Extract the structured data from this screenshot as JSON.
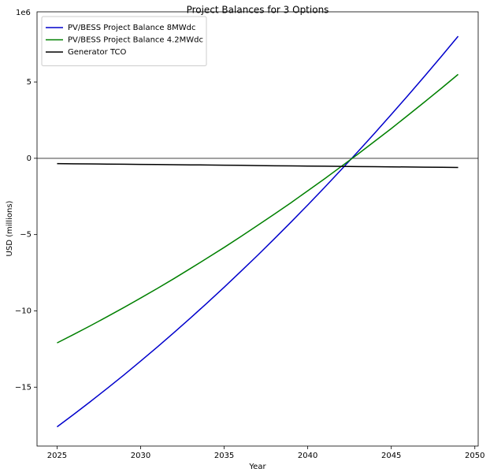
{
  "chart_data": {
    "type": "line",
    "title": "Project Balances for 3 Options",
    "x_label": "Year",
    "y_label": "USD (millions)",
    "y_offset_label": "1e6",
    "x": [
      2025,
      2026,
      2027,
      2028,
      2029,
      2030,
      2031,
      2032,
      2033,
      2034,
      2035,
      2036,
      2037,
      2038,
      2039,
      2040,
      2041,
      2042,
      2043,
      2044,
      2045,
      2046,
      2047,
      2048,
      2049
    ],
    "series": [
      {
        "name": "PV/BESS Project Balance 8MWdc",
        "color": "#0000cc",
        "values": [
          -17.6,
          -16.78,
          -15.94,
          -15.08,
          -14.2,
          -13.29,
          -12.37,
          -11.42,
          -10.45,
          -9.46,
          -8.45,
          -7.41,
          -6.36,
          -5.28,
          -4.18,
          -3.06,
          -1.92,
          -0.75,
          0.43,
          1.64,
          2.87,
          4.12,
          5.39,
          6.68,
          8.0
        ]
      },
      {
        "name": "PV/BESS Project Balance 4.2MWdc",
        "color": "#008000",
        "values": [
          -12.1,
          -11.54,
          -10.97,
          -10.38,
          -9.78,
          -9.16,
          -8.53,
          -7.88,
          -7.21,
          -6.53,
          -5.84,
          -5.13,
          -4.4,
          -3.66,
          -2.91,
          -2.13,
          -1.35,
          -0.54,
          0.27,
          1.11,
          1.95,
          2.82,
          3.7,
          4.59,
          5.5
        ]
      },
      {
        "name": "Generator TCO",
        "color": "#000000",
        "values": [
          -0.35,
          -0.36,
          -0.37,
          -0.38,
          -0.39,
          -0.4,
          -0.41,
          -0.42,
          -0.43,
          -0.44,
          -0.45,
          -0.46,
          -0.48,
          -0.49,
          -0.5,
          -0.51,
          -0.52,
          -0.53,
          -0.54,
          -0.55,
          -0.56,
          -0.57,
          -0.58,
          -0.59,
          -0.6
        ]
      }
    ],
    "xlim": [
      2023.8,
      2050.2
    ],
    "xticks": [
      2025,
      2030,
      2035,
      2040,
      2045,
      2050
    ],
    "ylim": [
      -18.86,
      9.6
    ],
    "yticks": [
      {
        "value": -15,
        "label": "−15"
      },
      {
        "value": -10,
        "label": "−10"
      },
      {
        "value": -5,
        "label": "−5"
      },
      0,
      5
    ],
    "axhline": {
      "y": 0,
      "color": "#808080"
    },
    "legend": "upper left",
    "grid": false
  }
}
